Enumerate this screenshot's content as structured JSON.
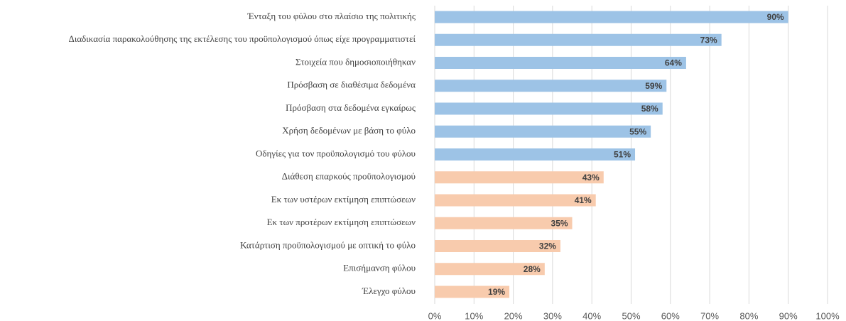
{
  "chart_data": {
    "type": "barh",
    "categories": [
      "Ένταξη του φύλου στο πλαίσιο της πολιτικής",
      "Διαδικασία παρακολούθησης της εκτέλεσης του προϋπολογισμού όπως είχε προγραμματιστεί",
      "Στοιχεία που δημοσιοποιήθηκαν",
      "Πρόσβαση σε διαθέσιμα δεδομένα",
      "Πρόσβαση στα δεδομένα εγκαίρως",
      "Χρήση δεδομένων με βάση το φύλο",
      "Οδηγίες για τον προϋπολογισμό του φύλου",
      "Διάθεση επαρκούς προϋπολογισμού",
      "Εκ των υστέρων εκτίμηση επιπτώσεων",
      "Εκ των προτέρων εκτίμηση επιπτώσεων",
      "Κατάρτιση προϋπολογισμού με οπτική το φύλο",
      "Επισήμανση φύλου",
      "Έλεγχο φύλου"
    ],
    "values": [
      90,
      73,
      64,
      59,
      58,
      55,
      51,
      43,
      41,
      35,
      32,
      28,
      19
    ],
    "value_labels": [
      "90%",
      "73%",
      "64%",
      "59%",
      "58%",
      "55%",
      "51%",
      "43%",
      "41%",
      "35%",
      "32%",
      "28%",
      "19%"
    ],
    "colors": [
      "#9dc3e6",
      "#9dc3e6",
      "#9dc3e6",
      "#9dc3e6",
      "#9dc3e6",
      "#9dc3e6",
      "#9dc3e6",
      "#f8cbad",
      "#f8cbad",
      "#f8cbad",
      "#f8cbad",
      "#f8cbad",
      "#f8cbad"
    ],
    "xlim": [
      0,
      100
    ],
    "xticks": [
      {
        "value": 0,
        "label": "0%"
      },
      {
        "value": 10,
        "label": "10%"
      },
      {
        "value": 20,
        "label": "20%"
      },
      {
        "value": 30,
        "label": "30%"
      },
      {
        "value": 40,
        "label": "40%"
      },
      {
        "value": 50,
        "label": "50%"
      },
      {
        "value": 60,
        "label": "60%"
      },
      {
        "value": 70,
        "label": "70%"
      },
      {
        "value": 80,
        "label": "80%"
      },
      {
        "value": 90,
        "label": "90%"
      },
      {
        "value": 100,
        "label": "100%"
      }
    ],
    "grid": true
  }
}
